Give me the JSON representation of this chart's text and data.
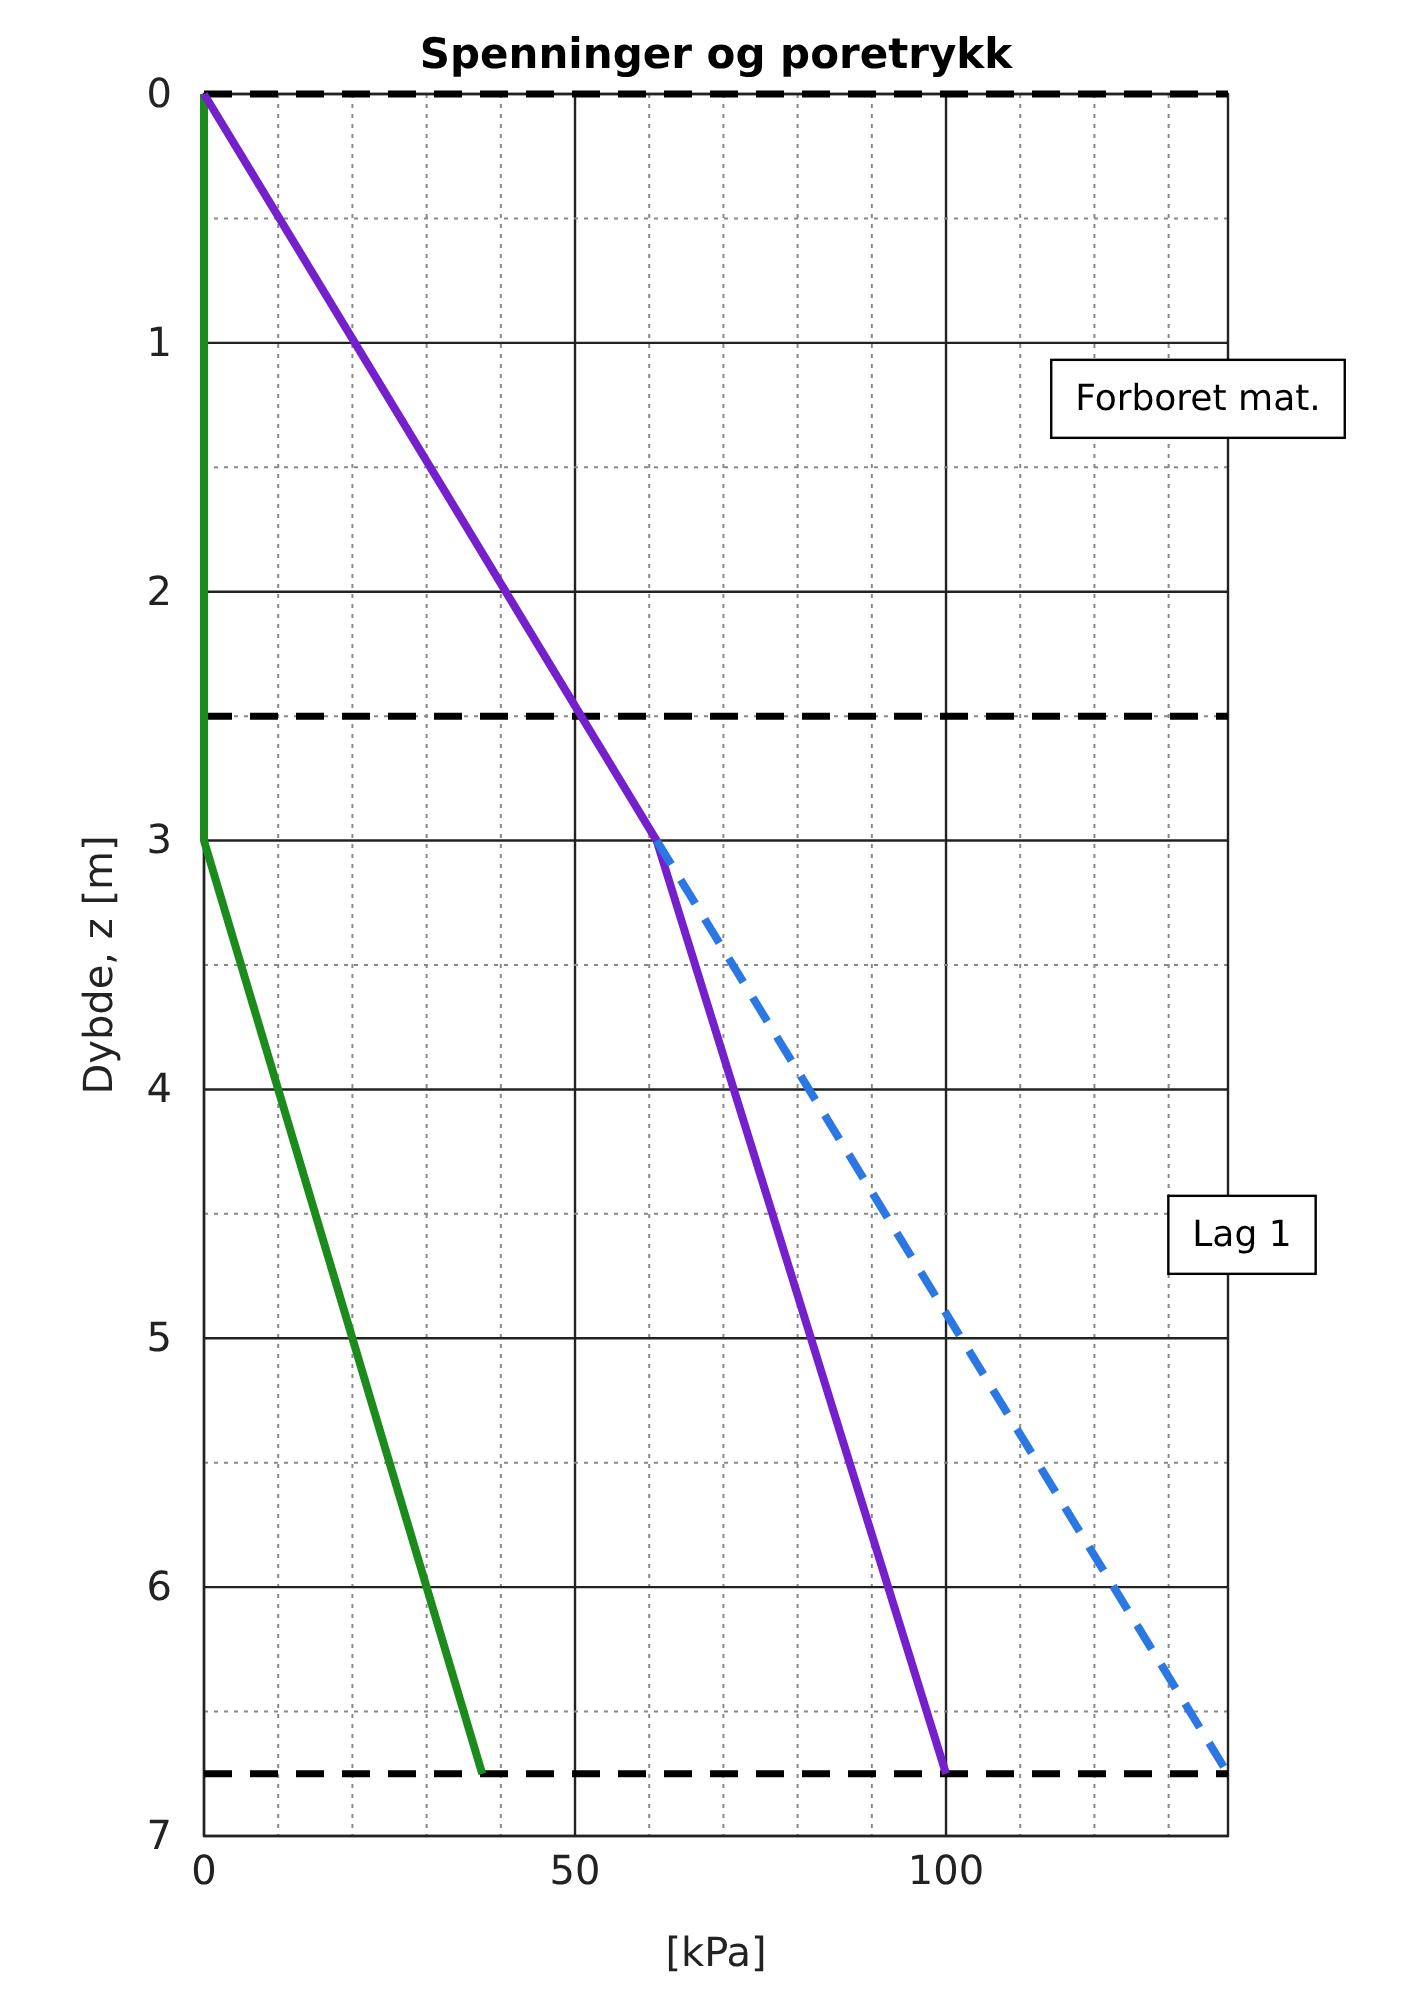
{
  "chart_data": {
    "type": "line",
    "title": "Spenninger og poretrykk",
    "xlabel": "[kPa]",
    "ylabel": "Dybde, z [m]",
    "xlim": [
      0,
      138
    ],
    "ylim": [
      7,
      0
    ],
    "xticks": [
      0,
      {
        "value": 10,
        "label": null
      },
      {
        "value": 20,
        "label": null
      },
      {
        "value": 30,
        "label": null
      },
      {
        "value": 40,
        "label": null
      },
      50,
      {
        "value": 60,
        "label": null
      },
      {
        "value": 70,
        "label": null
      },
      {
        "value": 80,
        "label": null
      },
      {
        "value": 90,
        "label": null
      },
      100,
      {
        "value": 110,
        "label": null
      },
      {
        "value": 120,
        "label": null
      },
      {
        "value": 130,
        "label": null
      }
    ],
    "yticks": [
      0,
      {
        "value": 0.5,
        "label": null
      },
      1,
      {
        "value": 1.5,
        "label": null
      },
      2,
      {
        "value": 2.5,
        "label": null
      },
      3,
      {
        "value": 3.5,
        "label": null
      },
      4,
      {
        "value": 4.5,
        "label": null
      },
      5,
      {
        "value": 5.5,
        "label": null
      },
      6,
      {
        "value": 6.5,
        "label": null
      },
      7
    ],
    "grid": true,
    "marker": "none",
    "series": [
      {
        "color": "#1b8c1b",
        "x": [
          0,
          0,
          37.5
        ],
        "values": [
          0,
          3,
          6.75
        ],
        "line_style": "solid"
      },
      {
        "color": "#7420cc",
        "x": [
          0,
          61,
          100
        ],
        "values": [
          0,
          3,
          6.75
        ],
        "line_style": "solid"
      },
      {
        "color": "#2b78e4",
        "x": [
          61,
          138
        ],
        "values": [
          3,
          6.75
        ],
        "line_style": "dashed"
      }
    ],
    "ref_lines": [
      {
        "axis": "y",
        "value": 0,
        "color": "#000000",
        "line_style": "dashed"
      },
      {
        "axis": "y",
        "value": 2.5,
        "color": "#000000",
        "line_style": "dashed"
      },
      {
        "axis": "y",
        "value": 6.75,
        "color": "#000000",
        "line_style": "dashed"
      }
    ],
    "annotations": [
      "Forboret mat.",
      "Lag 1"
    ]
  }
}
